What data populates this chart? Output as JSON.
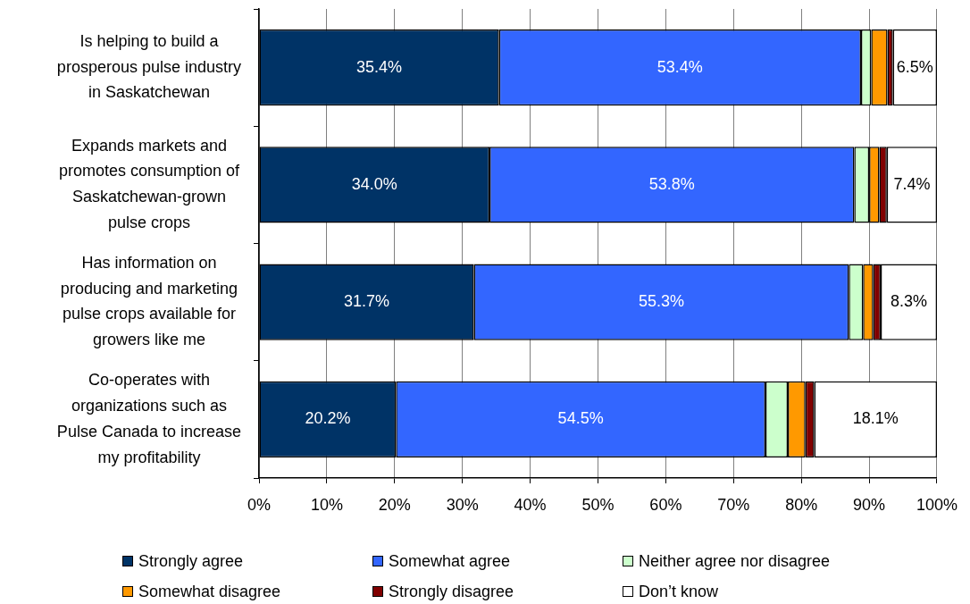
{
  "chart_data": {
    "type": "bar",
    "orientation": "horizontal",
    "stacked": true,
    "categories": [
      "Is helping to build a prosperous pulse industry in Saskatchewan",
      "Expands markets and promotes consumption of Saskatchewan-grown pulse crops",
      "Has information on producing and marketing pulse crops available for growers like me",
      "Co-operates with organizations such as Pulse Canada to increase my profitability"
    ],
    "series": [
      {
        "name": "Strongly agree",
        "color": "#003366",
        "values": [
          35.4,
          34.0,
          31.7,
          20.2
        ],
        "value_labels": [
          "35.4%",
          "34.0%",
          "31.7%",
          "20.2%"
        ]
      },
      {
        "name": "Somewhat agree",
        "color": "#3366ff",
        "values": [
          53.4,
          53.8,
          55.3,
          54.5
        ],
        "value_labels": [
          "53.4%",
          "53.8%",
          "55.3%",
          "54.5%"
        ]
      },
      {
        "name": "Neither agree nor disagree",
        "color": "#ccffcc",
        "values": [
          1.5,
          2.2,
          2.1,
          3.3
        ]
      },
      {
        "name": "Somewhat disagree",
        "color": "#ff9900",
        "values": [
          2.4,
          1.5,
          1.5,
          2.6
        ]
      },
      {
        "name": "Strongly disagree",
        "color": "#800000",
        "values": [
          0.8,
          1.1,
          1.1,
          1.3
        ]
      },
      {
        "name": "Don’t know",
        "color": "#ffffff",
        "values": [
          6.5,
          7.4,
          8.3,
          18.1
        ],
        "value_labels": [
          "6.5%",
          "7.4%",
          "8.3%",
          "18.1%"
        ]
      }
    ],
    "xlim": [
      0,
      100
    ],
    "xticks": [
      {
        "value": 0,
        "label": "0%"
      },
      {
        "value": 10,
        "label": "10%"
      },
      {
        "value": 20,
        "label": "20%"
      },
      {
        "value": 30,
        "label": "30%"
      },
      {
        "value": 40,
        "label": "40%"
      },
      {
        "value": 50,
        "label": "50%"
      },
      {
        "value": 60,
        "label": "60%"
      },
      {
        "value": 70,
        "label": "70%"
      },
      {
        "value": 80,
        "label": "80%"
      },
      {
        "value": 90,
        "label": "90%"
      },
      {
        "value": 100,
        "label": "100%"
      }
    ],
    "grid": "x",
    "legend": "bottom"
  }
}
